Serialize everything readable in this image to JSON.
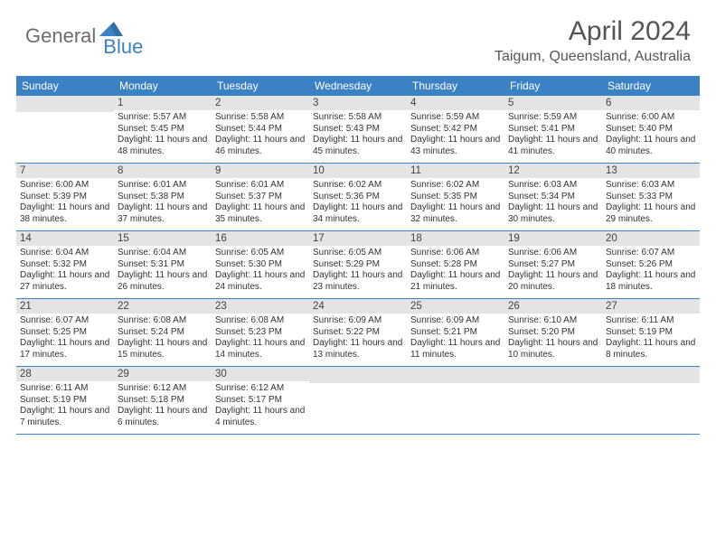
{
  "logo": {
    "part1": "General",
    "part2": "Blue"
  },
  "title": "April 2024",
  "subtitle": "Taigum, Queensland, Australia",
  "colors": {
    "accent": "#3b82c4",
    "daybar": "#e4e4e4",
    "text": "#333333",
    "logo_gray": "#6d6d6d"
  },
  "dayNames": [
    "Sunday",
    "Monday",
    "Tuesday",
    "Wednesday",
    "Thursday",
    "Friday",
    "Saturday"
  ],
  "calendar": {
    "type": "table",
    "columns_count": 7,
    "first_weekday_offset": 1,
    "days": [
      {
        "n": "1",
        "sunrise": "5:57 AM",
        "sunset": "5:45 PM",
        "daylight": "11 hours and 48 minutes."
      },
      {
        "n": "2",
        "sunrise": "5:58 AM",
        "sunset": "5:44 PM",
        "daylight": "11 hours and 46 minutes."
      },
      {
        "n": "3",
        "sunrise": "5:58 AM",
        "sunset": "5:43 PM",
        "daylight": "11 hours and 45 minutes."
      },
      {
        "n": "4",
        "sunrise": "5:59 AM",
        "sunset": "5:42 PM",
        "daylight": "11 hours and 43 minutes."
      },
      {
        "n": "5",
        "sunrise": "5:59 AM",
        "sunset": "5:41 PM",
        "daylight": "11 hours and 41 minutes."
      },
      {
        "n": "6",
        "sunrise": "6:00 AM",
        "sunset": "5:40 PM",
        "daylight": "11 hours and 40 minutes."
      },
      {
        "n": "7",
        "sunrise": "6:00 AM",
        "sunset": "5:39 PM",
        "daylight": "11 hours and 38 minutes."
      },
      {
        "n": "8",
        "sunrise": "6:01 AM",
        "sunset": "5:38 PM",
        "daylight": "11 hours and 37 minutes."
      },
      {
        "n": "9",
        "sunrise": "6:01 AM",
        "sunset": "5:37 PM",
        "daylight": "11 hours and 35 minutes."
      },
      {
        "n": "10",
        "sunrise": "6:02 AM",
        "sunset": "5:36 PM",
        "daylight": "11 hours and 34 minutes."
      },
      {
        "n": "11",
        "sunrise": "6:02 AM",
        "sunset": "5:35 PM",
        "daylight": "11 hours and 32 minutes."
      },
      {
        "n": "12",
        "sunrise": "6:03 AM",
        "sunset": "5:34 PM",
        "daylight": "11 hours and 30 minutes."
      },
      {
        "n": "13",
        "sunrise": "6:03 AM",
        "sunset": "5:33 PM",
        "daylight": "11 hours and 29 minutes."
      },
      {
        "n": "14",
        "sunrise": "6:04 AM",
        "sunset": "5:32 PM",
        "daylight": "11 hours and 27 minutes."
      },
      {
        "n": "15",
        "sunrise": "6:04 AM",
        "sunset": "5:31 PM",
        "daylight": "11 hours and 26 minutes."
      },
      {
        "n": "16",
        "sunrise": "6:05 AM",
        "sunset": "5:30 PM",
        "daylight": "11 hours and 24 minutes."
      },
      {
        "n": "17",
        "sunrise": "6:05 AM",
        "sunset": "5:29 PM",
        "daylight": "11 hours and 23 minutes."
      },
      {
        "n": "18",
        "sunrise": "6:06 AM",
        "sunset": "5:28 PM",
        "daylight": "11 hours and 21 minutes."
      },
      {
        "n": "19",
        "sunrise": "6:06 AM",
        "sunset": "5:27 PM",
        "daylight": "11 hours and 20 minutes."
      },
      {
        "n": "20",
        "sunrise": "6:07 AM",
        "sunset": "5:26 PM",
        "daylight": "11 hours and 18 minutes."
      },
      {
        "n": "21",
        "sunrise": "6:07 AM",
        "sunset": "5:25 PM",
        "daylight": "11 hours and 17 minutes."
      },
      {
        "n": "22",
        "sunrise": "6:08 AM",
        "sunset": "5:24 PM",
        "daylight": "11 hours and 15 minutes."
      },
      {
        "n": "23",
        "sunrise": "6:08 AM",
        "sunset": "5:23 PM",
        "daylight": "11 hours and 14 minutes."
      },
      {
        "n": "24",
        "sunrise": "6:09 AM",
        "sunset": "5:22 PM",
        "daylight": "11 hours and 13 minutes."
      },
      {
        "n": "25",
        "sunrise": "6:09 AM",
        "sunset": "5:21 PM",
        "daylight": "11 hours and 11 minutes."
      },
      {
        "n": "26",
        "sunrise": "6:10 AM",
        "sunset": "5:20 PM",
        "daylight": "11 hours and 10 minutes."
      },
      {
        "n": "27",
        "sunrise": "6:11 AM",
        "sunset": "5:19 PM",
        "daylight": "11 hours and 8 minutes."
      },
      {
        "n": "28",
        "sunrise": "6:11 AM",
        "sunset": "5:19 PM",
        "daylight": "11 hours and 7 minutes."
      },
      {
        "n": "29",
        "sunrise": "6:12 AM",
        "sunset": "5:18 PM",
        "daylight": "11 hours and 6 minutes."
      },
      {
        "n": "30",
        "sunrise": "6:12 AM",
        "sunset": "5:17 PM",
        "daylight": "11 hours and 4 minutes."
      }
    ]
  },
  "labels": {
    "sunrise": "Sunrise:",
    "sunset": "Sunset:",
    "daylight": "Daylight:"
  }
}
